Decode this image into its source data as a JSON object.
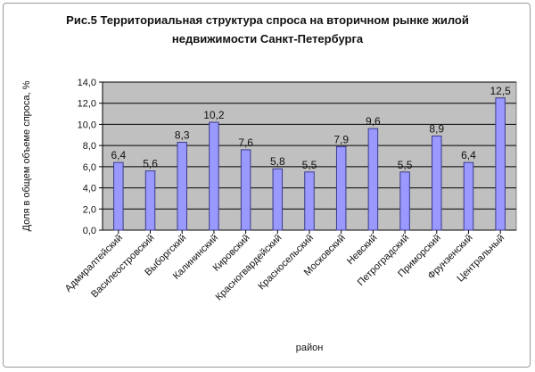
{
  "chart_data": {
    "type": "bar",
    "title": "Рис.5 Территориальная структура спроса на вторичном рынке жилой недвижимости Санкт-Петербурга",
    "xlabel": "район",
    "ylabel": "Доля в общем объеме спроса, %",
    "ylim": [
      0,
      14
    ],
    "yticks": [
      "0,0",
      "2,0",
      "4,0",
      "6,0",
      "8,0",
      "10,0",
      "12,0",
      "14,0"
    ],
    "grid": true,
    "legend": "none",
    "categories": [
      "Адмиралтейский",
      "Василеостровский",
      "Выборгский",
      "Калининский",
      "Кировский",
      "Красногвардейский",
      "Красносельский",
      "Московский",
      "Невский",
      "Петроградский",
      "Приморский",
      "Фрунзенский",
      "Центральный"
    ],
    "values": [
      6.4,
      5.6,
      8.3,
      10.2,
      7.6,
      5.8,
      5.5,
      7.9,
      9.6,
      5.5,
      8.9,
      6.4,
      12.5
    ],
    "value_labels": [
      "6,4",
      "5,6",
      "8,3",
      "10,2",
      "7,6",
      "5,8",
      "5,5",
      "7,9",
      "9,6",
      "5,5",
      "8,9",
      "6,4",
      "12,5"
    ],
    "colors": {
      "bar_fill": "#9999ff",
      "bar_stroke": "#3b3b8c",
      "plot_bg": "#c0c0c0",
      "grid": "#000000"
    }
  }
}
